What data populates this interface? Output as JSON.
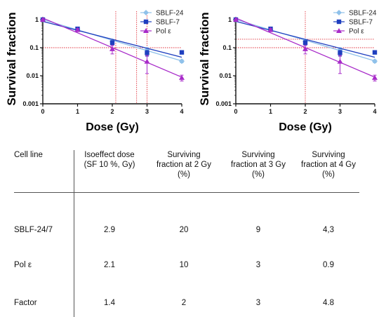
{
  "chart_data": [
    {
      "type": "scatter",
      "xlabel": "Dose (Gy)",
      "ylabel": "Survival fraction",
      "x_ticks": [
        "0",
        "1",
        "2",
        "3",
        "4"
      ],
      "y_ticks": [
        "0.001",
        "0.01",
        "0.1",
        "1"
      ],
      "xlim": [
        0,
        4
      ],
      "ylim": [
        0.001,
        1
      ],
      "y_scale": "log",
      "legend_position": "top-right",
      "series": [
        {
          "name": "SBLF-24",
          "color": "#8fc1ea",
          "marker": "diamond",
          "x": [
            0,
            1,
            2,
            3,
            4
          ],
          "y": [
            1,
            0.45,
            0.17,
            0.085,
            0.033
          ],
          "err": [
            0.05,
            0.05,
            0.03,
            0.015,
            0.004
          ]
        },
        {
          "name": "SBLF-7",
          "color": "#1f3fbf",
          "marker": "square",
          "x": [
            0,
            1,
            2,
            3,
            4
          ],
          "y": [
            1,
            0.47,
            0.15,
            0.065,
            0.068
          ],
          "err": [
            0.05,
            0.05,
            0.03,
            0.015,
            0.008
          ]
        },
        {
          "name": "Pol ε",
          "color": "#a82bc9",
          "marker": "triangle",
          "x": [
            0,
            1,
            2,
            3,
            4
          ],
          "y": [
            1,
            0.43,
            0.09,
            0.032,
            0.0085
          ],
          "err": [
            0.05,
            0.05,
            0.03,
            0.02,
            0.002
          ]
        }
      ],
      "reference_lines": {
        "horizontal_y": [
          0.1
        ],
        "vertical_x": [
          2.1,
          2.7,
          3.0
        ],
        "color": "#e0303a"
      }
    },
    {
      "type": "scatter",
      "xlabel": "Dose (Gy)",
      "ylabel": "Survival fraction",
      "x_ticks": [
        "0",
        "1",
        "2",
        "3",
        "4"
      ],
      "y_ticks": [
        "0.001",
        "0.01",
        "0.1",
        "1"
      ],
      "xlim": [
        0,
        4
      ],
      "ylim": [
        0.001,
        1
      ],
      "y_scale": "log",
      "legend_position": "top-right",
      "series": [
        {
          "name": "SBLF-24",
          "color": "#8fc1ea",
          "marker": "diamond",
          "x": [
            0,
            1,
            2,
            3,
            4
          ],
          "y": [
            1,
            0.45,
            0.17,
            0.085,
            0.033
          ],
          "err": [
            0.05,
            0.05,
            0.03,
            0.015,
            0.004
          ]
        },
        {
          "name": "SBLF-7",
          "color": "#1f3fbf",
          "marker": "square",
          "x": [
            0,
            1,
            2,
            3,
            4
          ],
          "y": [
            1,
            0.47,
            0.15,
            0.065,
            0.068
          ],
          "err": [
            0.05,
            0.05,
            0.03,
            0.015,
            0.008
          ]
        },
        {
          "name": "Pol ε",
          "color": "#a82bc9",
          "marker": "triangle",
          "x": [
            0,
            1,
            2,
            3,
            4
          ],
          "y": [
            1,
            0.43,
            0.09,
            0.032,
            0.0085
          ],
          "err": [
            0.05,
            0.05,
            0.03,
            0.02,
            0.002
          ]
        }
      ],
      "reference_lines": {
        "horizontal_y": [
          0.2,
          0.1
        ],
        "vertical_x": [
          2.0
        ],
        "color": "#e0303a"
      }
    }
  ],
  "table": {
    "headers": [
      [
        "Cell line"
      ],
      [
        "Isoeffect dose",
        "(SF 10 %, Gy)"
      ],
      [
        "Surviving",
        "fraction at 2 Gy",
        "(%)"
      ],
      [
        "Surviving",
        "fraction at 3 Gy",
        "(%)"
      ],
      [
        "Surviving",
        "fraction at 4 Gy",
        "(%)"
      ]
    ],
    "rows": [
      [
        "SBLF-24/7",
        "2.9",
        "20",
        "9",
        "4,3"
      ],
      [
        "Pol ε",
        "2.1",
        "10",
        "3",
        "0.9"
      ],
      [
        "Factor",
        "1.4",
        "2",
        "3",
        "4.8"
      ]
    ]
  }
}
